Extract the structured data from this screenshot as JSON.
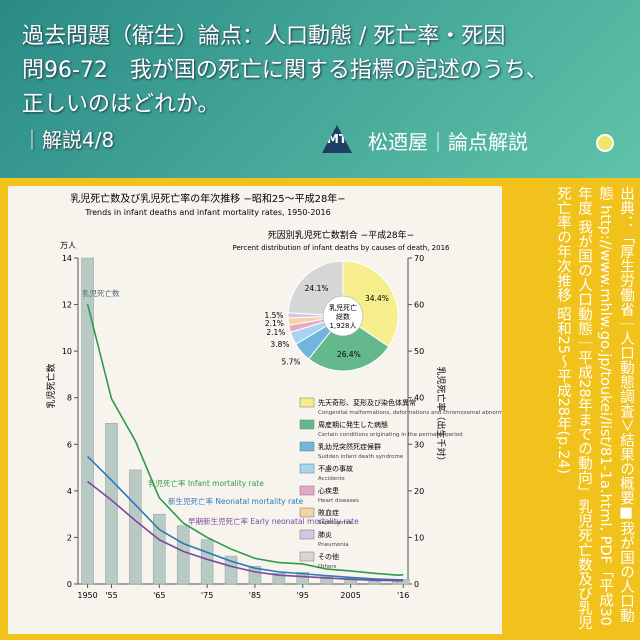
{
  "header": {
    "lines": [
      "過去問題（衛生）論点：人口動態 / 死亡率・死因",
      "問96-72　我が国の死亡に関する指標の記述のうち、",
      "正しいのはどれか。"
    ],
    "part": "｜解説4/8",
    "logo": "MT",
    "brand": "松迺屋｜論点解説"
  },
  "source": "出典：「厚生労働省｜人口動態調査＞結果の概要■我が国の人口動態 http://www.mhlw.go.jp/toukei/list/81-1a.html, PDF「平成30年度 我が国の人口動態｜平成28年までの動向」乳児死亡数及び乳児死亡率の年次推移 昭和25〜平成28年(p.24)",
  "chart_data": [
    {
      "type": "bar",
      "title": "乳児死亡数及び乳児死亡率の年次推移 −昭和25〜平成28年−",
      "subtitle": "Trends in infant deaths and infant mortality rates, 1950-2016",
      "y_label": "乳児死亡数",
      "y_unit": "万人",
      "y2_label": "乳児死亡率（出生千対）",
      "x": [
        1950,
        1955,
        1960,
        1965,
        1970,
        1975,
        1980,
        1985,
        1990,
        1995,
        2000,
        2005,
        2010,
        2015,
        2016
      ],
      "series": [
        {
          "name": "乳児死亡数",
          "color": "#b9c9c4",
          "values": [
            14.0,
            6.9,
            4.9,
            3.0,
            2.5,
            1.9,
            1.2,
            0.76,
            0.46,
            0.5,
            0.32,
            0.25,
            0.22,
            0.19,
            0.19
          ]
        },
        {
          "name": "乳児死亡率 Infant mortality rate",
          "color": "#2e9a4a",
          "axis": "y2",
          "values": [
            60.1,
            39.8,
            30.7,
            18.5,
            13.1,
            10.0,
            7.5,
            5.5,
            4.6,
            4.3,
            3.2,
            2.8,
            2.3,
            1.9,
            2.0
          ]
        },
        {
          "name": "新生児死亡率 Neonatal mortality rate",
          "color": "#2d79b8",
          "axis": "y2",
          "values": [
            27.4,
            22.3,
            17.0,
            11.7,
            8.7,
            6.8,
            4.9,
            3.4,
            2.6,
            2.2,
            1.8,
            1.4,
            1.1,
            0.9,
            0.9
          ]
        },
        {
          "name": "早期新生児死亡率 Early neonatal mortality rate",
          "color": "#7b4a9e",
          "axis": "y2",
          "values": [
            22.0,
            18.0,
            13.6,
            9.5,
            7.0,
            5.3,
            3.8,
            2.6,
            1.9,
            1.6,
            1.3,
            1.0,
            0.8,
            0.7,
            0.7
          ]
        }
      ],
      "xlim": [
        1948,
        2017
      ],
      "xticks": [
        {
          "value": 1950,
          "label": "1950"
        },
        {
          "value": 1955,
          "label": "'55"
        },
        {
          "value": 1965,
          "label": "'65"
        },
        {
          "value": 1975,
          "label": "'75"
        },
        {
          "value": 1985,
          "label": "'85"
        },
        {
          "value": 1995,
          "label": "'95"
        },
        2005,
        {
          "value": 2016,
          "label": "'16"
        }
      ],
      "ylim": [
        0,
        14
      ],
      "yticks": [
        0,
        2,
        4,
        6,
        8,
        10,
        12,
        14
      ],
      "y2lim": [
        0,
        70
      ],
      "y2ticks": [
        0,
        10,
        20,
        30,
        40,
        50,
        60,
        70
      ]
    },
    {
      "type": "pie",
      "title": "死因別乳児死亡数割合 −平成28年−",
      "subtitle": "Percent distribution of infant deaths by causes of death, 2016",
      "center": [
        "乳児死亡",
        "総数",
        "1,928人"
      ],
      "categories": [
        "先天奇形、変形及び染色体異常",
        "周産期に発生した病態",
        "乳幼児突然死症候群",
        "不慮の事故",
        "心疾患",
        "敗血症",
        "肺炎",
        "その他"
      ],
      "categories_en": [
        "Congenital malformations, deformations and chromosomal abnormalities",
        "Certain conditions originating in the perinatal period",
        "Sudden infant death syndrome",
        "Accidents",
        "Heart diseases",
        "Septicaemia",
        "Pneumonia",
        "Others"
      ],
      "values": [
        34.4,
        26.4,
        5.7,
        3.8,
        2.1,
        2.1,
        1.5,
        24.1
      ],
      "value_labels": [
        "34.4%",
        "26.4%",
        "5.7%",
        "3.8%",
        "2.1%",
        "2.1%",
        "1.5%",
        "24.1%"
      ],
      "colors": [
        "#f6ee8c",
        "#63b98c",
        "#72b5dc",
        "#a9d4ef",
        "#e9a7c6",
        "#f2d3a5",
        "#d8c4e6",
        "#d6d6d6"
      ]
    }
  ]
}
